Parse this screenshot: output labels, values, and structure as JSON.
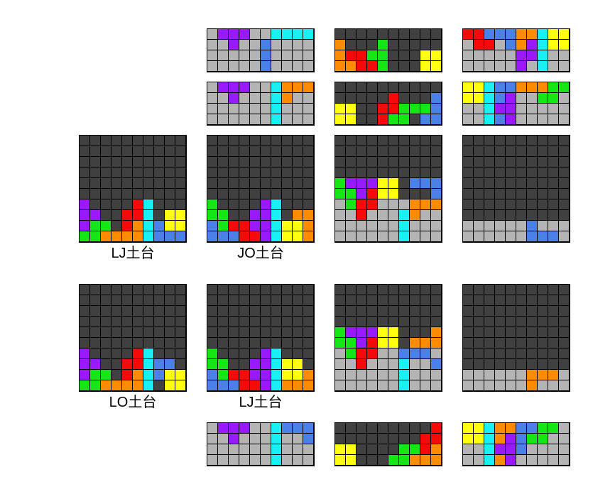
{
  "colors": {
    "D": "#404040",
    "G": "#b4b4b4",
    "P": "#9a1aff",
    "C": "#19f0f5",
    "B": "#4a80e8",
    "O": "#ff8c00",
    "R": "#f50a0a",
    "N": "#16e616",
    "Y": "#ffff10"
  },
  "captions": {
    "lj1": "LJ土台",
    "jo": "JO土台",
    "lo": "LO土台",
    "lj2": "LJ土台"
  },
  "boards": [
    {
      "id": "top-a",
      "rows": [
        "GPPPGGCCCC",
        "GGPGGBGGGG",
        "GGGGGBGGGG",
        "GGGGGBGGGG"
      ]
    },
    {
      "id": "top-b",
      "rows": [
        "DDDDDDDDDD",
        "ODDDNDDDDD",
        "ORRNNDDDYY",
        "OORRNDDDYY"
      ]
    },
    {
      "id": "top-c",
      "rows": [
        "RRBBBOOCYY",
        "GRRGBOPCYY",
        "GGGGGPPCGG",
        "GGGGGPGCGG"
      ]
    },
    {
      "id": "mid-a",
      "rows": [
        "GPPPGGCOOO",
        "GGPGGGCOGG",
        "GGGGGGCGGG",
        "GGGGGGCGGG"
      ]
    },
    {
      "id": "mid-b",
      "rows": [
        "DDDDDDDDDD",
        "DDDDDRDDDB",
        "YYDDRRNNNB",
        "YYDDRNNDBB"
      ]
    },
    {
      "id": "mid-c",
      "rows": [
        "YYCBBOOONN",
        "YYCBPGGNNG",
        "GGCPPGGGGG",
        "GGCBPGGGGG"
      ]
    },
    {
      "id": "lj1",
      "rows": [
        "DDDDDDDDDD",
        "DDDDDDDDDD",
        "DDDDDDDDDD",
        "DDDDDDDDDD",
        "DDDDDDDDDD",
        "DDDDDDDDDD",
        "PDDDDRCDDD",
        "PPDDRRCDYY",
        "PNNDROCBYY",
        "NNOOOOCBBB"
      ]
    },
    {
      "id": "jo",
      "rows": [
        "DDDDDDDDDD",
        "DDDDDDDDDD",
        "DDDDDDDDDD",
        "DDDDDDDDDD",
        "DDDDDDDDDD",
        "DDDDDDDDDD",
        "NDDDDPCDDD",
        "NNDDPPCDOO",
        "BNRRPPCYYO",
        "BBBRRPCYYO"
      ]
    },
    {
      "id": "jo-after",
      "rows": [
        "DDDDDDDDDD",
        "DDDDDDDDDD",
        "DDDDDDDDDD",
        "DDDDDDDDDD",
        "NPPPYYDBBB",
        "NNPRYYDDDB",
        "GNRRGGGOOO",
        "GGRGGGCOGG",
        "GGGGGGCGGG",
        "GGGGGGCGGG"
      ]
    },
    {
      "id": "jo-final",
      "rows": [
        "DDDDDDDDDD",
        "DDDDDDDDDD",
        "DDDDDDDDDD",
        "DDDDDDDDDD",
        "DDDDDDDDDD",
        "DDDDDDDDDD",
        "DDDDDDDDDD",
        "DDDDDDDDDD",
        "GGGGGGBGGG",
        "GGGGGGBBBG"
      ]
    },
    {
      "id": "lo",
      "rows": [
        "DDDDDDDDDD",
        "DDDDDDDDDD",
        "DDDDDDDDDD",
        "DDDDDDDDDD",
        "DDDDDDDDDD",
        "DDDDDDDDDD",
        "PDDDDRCDDD",
        "PPDDRRCBBD",
        "PNNDROCBYY",
        "NNOOOOCDYY"
      ]
    },
    {
      "id": "lj2",
      "rows": [
        "DDDDDDDDDD",
        "DDDDDDDDDD",
        "DDDDDDDDDD",
        "DDDDDDDDDD",
        "DDDDDDDDDD",
        "DDDDDDDDDD",
        "NDDDDPCDDD",
        "NNDDPPCYYD",
        "BNRRPPCYYO",
        "BBBRRPCOOO"
      ]
    },
    {
      "id": "lj2-after",
      "rows": [
        "DDDDDDDDDD",
        "DDDDDDDDDD",
        "DDDDDDDDDD",
        "DDDDDDDDDD",
        "NPPPYYDDDO",
        "NNPRYYDOOO",
        "GNRRGGBBBG",
        "GGRGGGCGGB",
        "GGGGGGCGGG",
        "GGGGGGCGGG"
      ]
    },
    {
      "id": "lj2-final",
      "rows": [
        "DDDDDDDDDD",
        "DDDDDDDDDD",
        "DDDDDDDDDD",
        "DDDDDDDDDD",
        "DDDDDDDDDD",
        "DDDDDDDDDD",
        "DDDDDDDDDD",
        "DDDDDDDDDD",
        "GGGGGGOOOG",
        "GGGGGGOGGG"
      ]
    },
    {
      "id": "bot-a",
      "rows": [
        "GPPPGGCBBB",
        "GGPGGGCGGB",
        "GGGGGGCGGG",
        "GGGGGGCGGG"
      ]
    },
    {
      "id": "bot-b",
      "rows": [
        "DDDDDDDDDR",
        "DDDDDDDDRR",
        "YYDDDDNNRO",
        "YYDDDNNOOO"
      ]
    },
    {
      "id": "bot-c",
      "rows": [
        "YYCOOBBNNG",
        "YYCOPBNNGG",
        "GGCPPBGGGG",
        "GGCOPGGGGG"
      ]
    }
  ]
}
